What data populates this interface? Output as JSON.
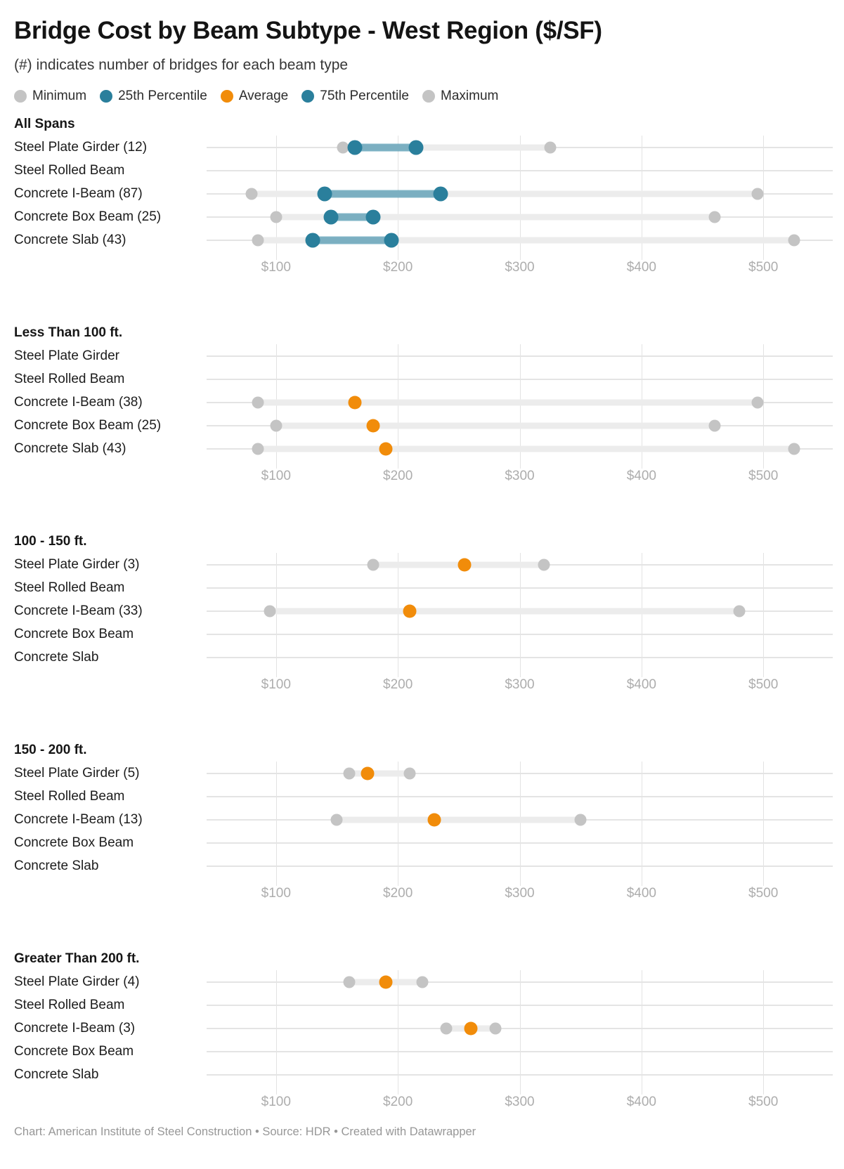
{
  "title": "Bridge Cost by Beam Subtype - West Region ($/SF)",
  "subtitle": "(#) indicates number of bridges for each beam type",
  "footer": "Chart: American Institute of Steel Construction • Source: HDR • Created with Datawrapper",
  "colors": {
    "teal": "#2a7f9c",
    "teal_bar": "rgba(31,126,158,0.55)",
    "orange": "#f18c0a",
    "gray_dot": "#c4c4c4",
    "gray_bar": "#ececec",
    "gridline": "#e3e3e3",
    "axis_text": "#adadad"
  },
  "legend": [
    {
      "label": "Minimum",
      "marker": "gray_dot"
    },
    {
      "label": "25th Percentile",
      "marker": "teal"
    },
    {
      "label": "Average",
      "marker": "orange"
    },
    {
      "label": "75th Percentile",
      "marker": "teal"
    },
    {
      "label": "Maximum",
      "marker": "gray_dot"
    }
  ],
  "chart_data": {
    "type": "dumbbell-range-dot-plot",
    "x_unit": "$/SF",
    "x_domain": [
      43,
      557
    ],
    "ticks": [
      100,
      200,
      300,
      400,
      500
    ],
    "tick_labels": [
      "$100",
      "$200",
      "$300",
      "$400",
      "$500"
    ],
    "grid": true,
    "legend_position": "top",
    "sections": [
      {
        "heading": "All Spans",
        "rows": [
          {
            "label": "Steel Plate Girder (12)",
            "count": 12,
            "min": 155,
            "p25": 165,
            "avg": null,
            "p75": 215,
            "max": 325
          },
          {
            "label": "Steel Rolled Beam",
            "count": null,
            "min": null,
            "p25": null,
            "avg": null,
            "p75": null,
            "max": null
          },
          {
            "label": "Concrete I-Beam (87)",
            "count": 87,
            "min": 80,
            "p25": 140,
            "avg": null,
            "p75": 235,
            "max": 495
          },
          {
            "label": "Concrete Box Beam (25)",
            "count": 25,
            "min": 100,
            "p25": 145,
            "avg": null,
            "p75": 180,
            "max": 460
          },
          {
            "label": "Concrete Slab (43)",
            "count": 43,
            "min": 85,
            "p25": 130,
            "avg": null,
            "p75": 195,
            "max": 525
          }
        ]
      },
      {
        "heading": "Less Than 100 ft.",
        "rows": [
          {
            "label": "Steel Plate Girder",
            "count": null,
            "min": null,
            "p25": null,
            "avg": null,
            "p75": null,
            "max": null
          },
          {
            "label": "Steel Rolled Beam",
            "count": null,
            "min": null,
            "p25": null,
            "avg": null,
            "p75": null,
            "max": null
          },
          {
            "label": "Concrete I-Beam (38)",
            "count": 38,
            "min": 85,
            "p25": null,
            "avg": 165,
            "p75": null,
            "max": 495
          },
          {
            "label": "Concrete Box Beam (25)",
            "count": 25,
            "min": 100,
            "p25": null,
            "avg": 180,
            "p75": null,
            "max": 460
          },
          {
            "label": "Concrete Slab (43)",
            "count": 43,
            "min": 85,
            "p25": null,
            "avg": 190,
            "p75": null,
            "max": 525
          }
        ]
      },
      {
        "heading": "100 - 150 ft.",
        "rows": [
          {
            "label": "Steel Plate Girder (3)",
            "count": 3,
            "min": 180,
            "p25": null,
            "avg": 255,
            "p75": null,
            "max": 320
          },
          {
            "label": "Steel Rolled Beam",
            "count": null,
            "min": null,
            "p25": null,
            "avg": null,
            "p75": null,
            "max": null
          },
          {
            "label": "Concrete I-Beam (33)",
            "count": 33,
            "min": 95,
            "p25": null,
            "avg": 210,
            "p75": null,
            "max": 480
          },
          {
            "label": "Concrete Box Beam",
            "count": null,
            "min": null,
            "p25": null,
            "avg": null,
            "p75": null,
            "max": null
          },
          {
            "label": "Concrete Slab",
            "count": null,
            "min": null,
            "p25": null,
            "avg": null,
            "p75": null,
            "max": null
          }
        ]
      },
      {
        "heading": "150 - 200 ft.",
        "rows": [
          {
            "label": "Steel Plate Girder (5)",
            "count": 5,
            "min": 160,
            "p25": null,
            "avg": 175,
            "p75": null,
            "max": 210
          },
          {
            "label": "Steel Rolled Beam",
            "count": null,
            "min": null,
            "p25": null,
            "avg": null,
            "p75": null,
            "max": null
          },
          {
            "label": "Concrete I-Beam (13)",
            "count": 13,
            "min": 150,
            "p25": null,
            "avg": 230,
            "p75": null,
            "max": 350
          },
          {
            "label": "Concrete Box Beam",
            "count": null,
            "min": null,
            "p25": null,
            "avg": null,
            "p75": null,
            "max": null
          },
          {
            "label": "Concrete Slab",
            "count": null,
            "min": null,
            "p25": null,
            "avg": null,
            "p75": null,
            "max": null
          }
        ]
      },
      {
        "heading": "Greater Than 200 ft.",
        "rows": [
          {
            "label": "Steel Plate Girder (4)",
            "count": 4,
            "min": 160,
            "p25": null,
            "avg": 190,
            "p75": null,
            "max": 220
          },
          {
            "label": "Steel Rolled Beam",
            "count": null,
            "min": null,
            "p25": null,
            "avg": null,
            "p75": null,
            "max": null
          },
          {
            "label": "Concrete I-Beam (3)",
            "count": 3,
            "min": 240,
            "p25": null,
            "avg": 260,
            "p75": null,
            "max": 280
          },
          {
            "label": "Concrete Box Beam",
            "count": null,
            "min": null,
            "p25": null,
            "avg": null,
            "p75": null,
            "max": null
          },
          {
            "label": "Concrete Slab",
            "count": null,
            "min": null,
            "p25": null,
            "avg": null,
            "p75": null,
            "max": null
          }
        ]
      }
    ]
  }
}
